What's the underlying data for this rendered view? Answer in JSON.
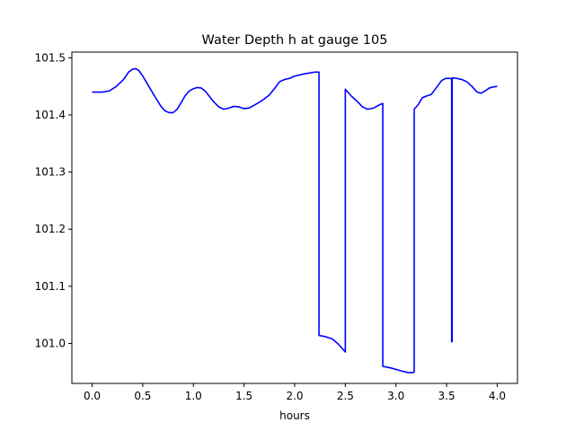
{
  "chart_data": {
    "type": "line",
    "title": "Water Depth h at gauge 105",
    "xlabel": "hours",
    "ylabel": "",
    "xlim": [
      -0.2,
      4.2
    ],
    "ylim": [
      100.93,
      101.51
    ],
    "xticks": [
      0.0,
      0.5,
      1.0,
      1.5,
      2.0,
      2.5,
      3.0,
      3.5,
      4.0
    ],
    "xtick_labels": [
      "0.0",
      "0.5",
      "1.0",
      "1.5",
      "2.0",
      "2.5",
      "3.0",
      "3.5",
      "4.0"
    ],
    "yticks": [
      101.0,
      101.1,
      101.2,
      101.3,
      101.4,
      101.5
    ],
    "ytick_labels": [
      "101.0",
      "101.1",
      "101.2",
      "101.3",
      "101.4",
      "101.5"
    ],
    "grid": false,
    "legend": "none",
    "series": [
      {
        "color": "#0000ff",
        "x": [
          0.0,
          0.1,
          0.17,
          0.24,
          0.31,
          0.36,
          0.4,
          0.43,
          0.46,
          0.5,
          0.56,
          0.62,
          0.68,
          0.72,
          0.76,
          0.8,
          0.84,
          0.88,
          0.92,
          0.96,
          1.0,
          1.04,
          1.08,
          1.12,
          1.16,
          1.2,
          1.25,
          1.3,
          1.35,
          1.4,
          1.45,
          1.5,
          1.55,
          1.6,
          1.65,
          1.7,
          1.75,
          1.8,
          1.85,
          1.9,
          1.95,
          2.0,
          2.1,
          2.2,
          2.24,
          2.24,
          2.3,
          2.37,
          2.43,
          2.5,
          2.5,
          2.56,
          2.62,
          2.67,
          2.72,
          2.78,
          2.84,
          2.87,
          2.87,
          2.95,
          3.05,
          3.12,
          3.17,
          3.18,
          3.18,
          3.22,
          3.26,
          3.3,
          3.35,
          3.4,
          3.45,
          3.49,
          3.53,
          3.55,
          3.55,
          3.555,
          3.555,
          3.6,
          3.65,
          3.7,
          3.75,
          3.8,
          3.84,
          3.88,
          3.92,
          3.96,
          4.0
        ],
        "y": [
          101.44,
          101.44,
          101.442,
          101.45,
          101.462,
          101.475,
          101.48,
          101.481,
          101.478,
          101.468,
          101.45,
          101.432,
          101.415,
          101.407,
          101.404,
          101.404,
          101.41,
          101.422,
          101.434,
          101.442,
          101.446,
          101.448,
          101.447,
          101.441,
          101.432,
          101.423,
          101.414,
          101.41,
          101.412,
          101.415,
          101.414,
          101.411,
          101.412,
          101.417,
          101.422,
          101.428,
          101.435,
          101.446,
          101.458,
          101.462,
          101.464,
          101.468,
          101.472,
          101.475,
          101.475,
          101.014,
          101.012,
          101.008,
          100.999,
          100.985,
          101.445,
          101.433,
          101.423,
          101.414,
          101.41,
          101.412,
          101.418,
          101.42,
          100.96,
          100.957,
          100.952,
          100.949,
          100.949,
          100.95,
          101.41,
          101.418,
          101.43,
          101.433,
          101.436,
          101.448,
          101.46,
          101.464,
          101.464,
          101.463,
          101.003,
          101.003,
          101.465,
          101.464,
          101.462,
          101.458,
          101.45,
          101.44,
          101.438,
          101.442,
          101.447,
          101.449,
          101.45
        ]
      }
    ]
  }
}
